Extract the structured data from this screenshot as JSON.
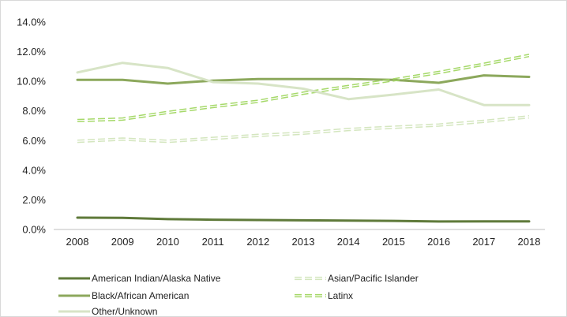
{
  "chart_data": {
    "type": "line",
    "title": "",
    "xlabel": "",
    "ylabel": "",
    "categories": [
      "2008",
      "2009",
      "2010",
      "2011",
      "2012",
      "2013",
      "2014",
      "2015",
      "2016",
      "2017",
      "2018"
    ],
    "ylim": [
      0,
      14
    ],
    "yticks": [
      0,
      2,
      4,
      6,
      8,
      10,
      12,
      14
    ],
    "ytick_labels": [
      "0.0%",
      "2.0%",
      "4.0%",
      "6.0%",
      "8.0%",
      "10.0%",
      "12.0%",
      "14.0%"
    ],
    "grid": false,
    "legend_position": "bottom",
    "series": [
      {
        "name": "American Indian/Alaska Native",
        "values": [
          0.8,
          0.78,
          0.7,
          0.66,
          0.64,
          0.62,
          0.6,
          0.58,
          0.54,
          0.55,
          0.55
        ],
        "color": "#5f7a3a",
        "style": "solid"
      },
      {
        "name": "Asian/Pacific Islander",
        "values": [
          5.95,
          6.1,
          5.95,
          6.15,
          6.35,
          6.5,
          6.75,
          6.9,
          7.05,
          7.3,
          7.6
        ],
        "color": "#d4e6bf",
        "style": "dashed"
      },
      {
        "name": "Black/African American",
        "values": [
          10.1,
          10.1,
          9.85,
          10.05,
          10.15,
          10.15,
          10.15,
          10.1,
          9.9,
          10.4,
          10.3
        ],
        "color": "#8ca85c",
        "style": "solid"
      },
      {
        "name": "Latinx",
        "values": [
          7.35,
          7.45,
          7.9,
          8.3,
          8.65,
          9.2,
          9.65,
          10.1,
          10.6,
          11.15,
          11.75
        ],
        "color": "#a6d96a",
        "style": "dashed"
      },
      {
        "name": "Other/Unknown",
        "values": [
          10.6,
          11.25,
          10.9,
          9.95,
          9.85,
          9.5,
          8.8,
          9.1,
          9.45,
          8.4,
          8.4
        ],
        "color": "#d7e4c6",
        "style": "solid"
      }
    ]
  }
}
